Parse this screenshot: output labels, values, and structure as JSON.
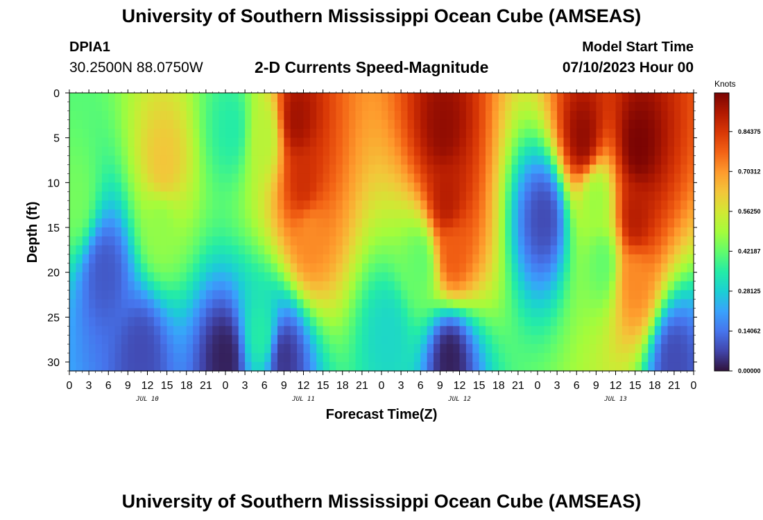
{
  "header": {
    "title": "University of Southern Mississippi Ocean Cube (AMSEAS)",
    "station_id": "DPIA1",
    "station_coords": "30.2500N  88.0750W",
    "plot_title": "2-D Currents Speed-Magnitude",
    "model_start_label": "Model Start Time",
    "model_start_value": "07/10/2023 Hour 00"
  },
  "footer": {
    "title": "University of Southern Mississippi Ocean Cube (AMSEAS)"
  },
  "chart_data": {
    "type": "heatmap",
    "title": "2-D Currents Speed-Magnitude",
    "xlabel": "Forecast Time(Z)",
    "ylabel": "Depth (ft)",
    "x_ticks": [
      "0",
      "3",
      "6",
      "9",
      "12",
      "15",
      "18",
      "21",
      "0",
      "3",
      "6",
      "9",
      "12",
      "15",
      "18",
      "21",
      "0",
      "3",
      "6",
      "9",
      "12",
      "15",
      "18",
      "21",
      "0",
      "3",
      "6",
      "9",
      "12",
      "15",
      "18",
      "21",
      "0"
    ],
    "day_labels": [
      "JUL 10",
      "JUL 11",
      "JUL 12",
      "JUL 13"
    ],
    "y_ticks": [
      "0",
      "5",
      "10",
      "15",
      "20",
      "25",
      "30"
    ],
    "xlim_hours": [
      0,
      96
    ],
    "ylim_ft": [
      0,
      31
    ],
    "colorbar": {
      "unit": "Knots",
      "range": [
        0,
        0.98
      ],
      "ticks": [
        "0.00000",
        "0.14062",
        "0.28125",
        "0.42187",
        "0.56250",
        "0.70312",
        "0.84375"
      ],
      "colors": [
        "#30123b",
        "#4145ab",
        "#4675ed",
        "#39a2fc",
        "#1bcfd4",
        "#24eca6",
        "#61fc6c",
        "#a4fc3b",
        "#d1e834",
        "#f3c63a",
        "#fe9b2d",
        "#f36315",
        "#d93806",
        "#b11901",
        "#7a0403"
      ]
    },
    "regions": [
      {
        "time": 1,
        "depth": 12,
        "value": 0.44
      },
      {
        "time": 14.5,
        "depth": 8,
        "value": 0.63
      },
      {
        "time": 14,
        "depth": 15,
        "value": 0.47
      },
      {
        "time": 25,
        "depth": 4,
        "value": 0.35
      },
      {
        "time": 35,
        "depth": 3,
        "value": 0.93
      },
      {
        "time": 36,
        "depth": 10,
        "value": 0.86
      },
      {
        "time": 37,
        "depth": 16,
        "value": 0.72
      },
      {
        "time": 57.5,
        "depth": 4,
        "value": 0.95
      },
      {
        "time": 58,
        "depth": 12,
        "value": 0.9
      },
      {
        "time": 59,
        "depth": 18,
        "value": 0.78
      },
      {
        "time": 54,
        "depth": 19,
        "value": 0.42
      },
      {
        "time": 79,
        "depth": 5,
        "value": 0.95
      },
      {
        "time": 87.5,
        "depth": 6,
        "value": 0.98
      },
      {
        "time": 87,
        "depth": 14,
        "value": 0.9
      },
      {
        "time": 87,
        "depth": 21,
        "value": 0.72
      },
      {
        "time": 81,
        "depth": 12,
        "value": 0.48
      },
      {
        "time": 82,
        "depth": 19,
        "value": 0.42
      },
      {
        "time": 30,
        "depth": 5,
        "value": 0.52
      },
      {
        "time": 73,
        "depth": 14,
        "value": 0.08
      },
      {
        "time": 5.5,
        "depth": 20,
        "value": 0.1
      },
      {
        "time": 24,
        "depth": 29.5,
        "value": 0.02
      },
      {
        "time": 33,
        "depth": 29.5,
        "value": 0.05
      },
      {
        "time": 58.5,
        "depth": 29.5,
        "value": 0.02
      },
      {
        "time": 11,
        "depth": 29,
        "value": 0.08
      },
      {
        "time": 93,
        "depth": 30,
        "value": 0.08
      },
      {
        "time": 29.5,
        "depth": 27,
        "value": 0.35
      },
      {
        "time": 49,
        "depth": 27,
        "value": 0.3
      }
    ]
  }
}
